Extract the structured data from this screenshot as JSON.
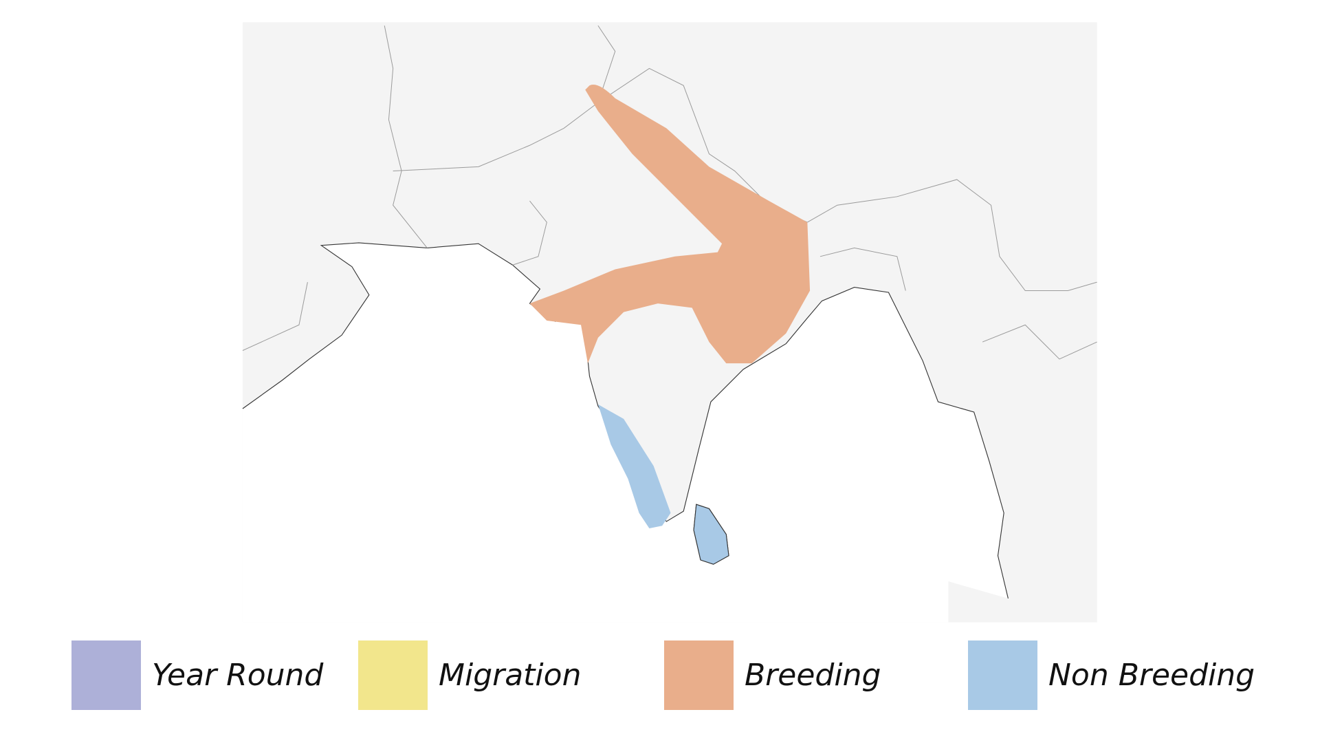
{
  "legend": {
    "items": [
      {
        "label": "Year Round",
        "color": "#adb0d8"
      },
      {
        "label": "Migration",
        "color": "#f2e68c"
      },
      {
        "label": "Breeding",
        "color": "#e9ae8b"
      },
      {
        "label": "Non Breeding",
        "color": "#a8c9e6"
      }
    ]
  }
}
